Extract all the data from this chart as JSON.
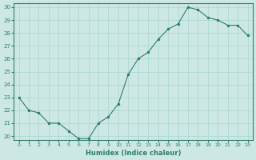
{
  "xlabel": "Humidex (Indice chaleur)",
  "x": [
    0,
    1,
    2,
    3,
    4,
    5,
    6,
    7,
    8,
    9,
    10,
    11,
    12,
    13,
    14,
    15,
    16,
    17,
    18,
    19,
    20,
    21,
    22,
    23
  ],
  "y": [
    23,
    22,
    21.8,
    21,
    21,
    20.4,
    19.8,
    19.8,
    21.0,
    21.5,
    22.5,
    24.8,
    26.0,
    26.5,
    27.5,
    28.3,
    28.7,
    30.0,
    29.8,
    29.2,
    29.0,
    28.6,
    28.6,
    27.8
  ],
  "ylim": [
    20,
    30
  ],
  "yticks": [
    20,
    21,
    22,
    23,
    24,
    25,
    26,
    27,
    28,
    29,
    30
  ],
  "xticks": [
    0,
    1,
    2,
    3,
    4,
    5,
    6,
    7,
    8,
    9,
    10,
    11,
    12,
    13,
    14,
    15,
    16,
    17,
    18,
    19,
    20,
    21,
    22,
    23
  ],
  "line_color": "#2e7d6e",
  "marker_color": "#2e7d6e",
  "bg_color": "#cde8e4",
  "grid_color": "#a8d5cf",
  "text_color": "#2e7d6e",
  "tick_color": "#2e7d6e",
  "axis_color": "#2e7d6e"
}
